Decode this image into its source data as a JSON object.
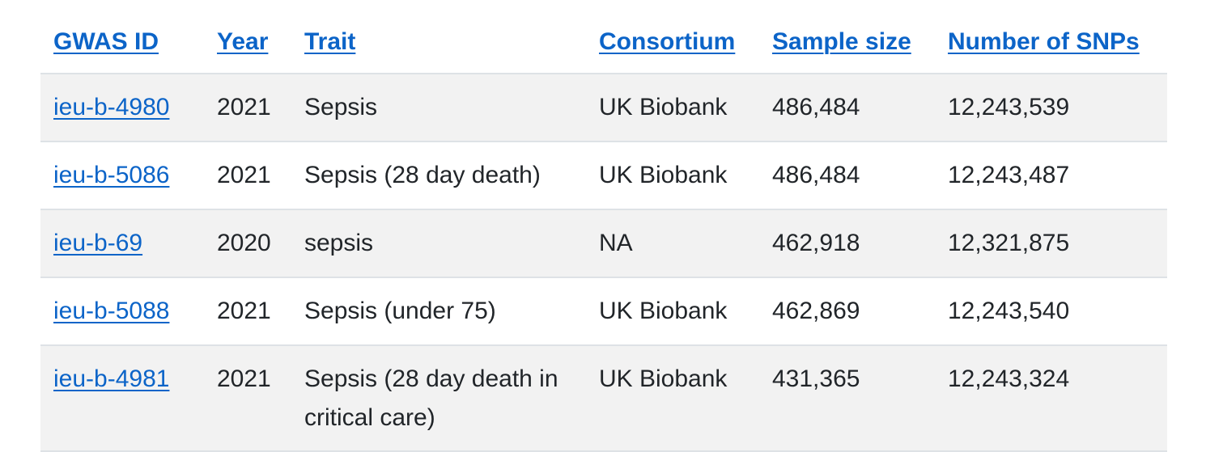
{
  "table": {
    "headers": {
      "id": "GWAS ID",
      "year": "Year",
      "trait": "Trait",
      "consortium": "Consortium",
      "sample_size": "Sample size",
      "snps": "Number of SNPs"
    },
    "rows": [
      {
        "id": "ieu-b-4980",
        "year": "2021",
        "trait": "Sepsis",
        "consortium": "UK Biobank",
        "sample_size": "486,484",
        "snps": "12,243,539"
      },
      {
        "id": "ieu-b-5086",
        "year": "2021",
        "trait": "Sepsis (28 day death)",
        "consortium": "UK Biobank",
        "sample_size": "486,484",
        "snps": "12,243,487"
      },
      {
        "id": "ieu-b-69",
        "year": "2020",
        "trait": "sepsis",
        "consortium": "NA",
        "sample_size": "462,918",
        "snps": "12,321,875"
      },
      {
        "id": "ieu-b-5088",
        "year": "2021",
        "trait": "Sepsis (under 75)",
        "consortium": "UK Biobank",
        "sample_size": "462,869",
        "snps": "12,243,540"
      },
      {
        "id": "ieu-b-4981",
        "year": "2021",
        "trait": "Sepsis (28 day death in critical care)",
        "consortium": "UK Biobank",
        "sample_size": "431,365",
        "snps": "12,243,324"
      }
    ]
  },
  "colors": {
    "link": "#0c64c8",
    "row_stripe": "#f2f2f2",
    "border": "#dee2e6",
    "text": "#212529"
  }
}
